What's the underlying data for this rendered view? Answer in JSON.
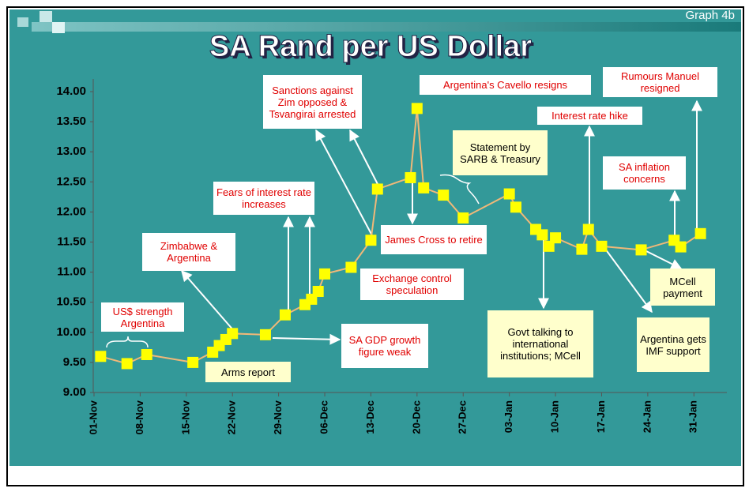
{
  "graph_label": "Graph 4b",
  "chart_data": {
    "type": "line",
    "title": "SA Rand per US Dollar",
    "x": [
      1,
      5,
      8,
      15,
      18,
      19,
      20,
      21,
      26,
      29,
      32,
      33,
      34,
      35,
      39,
      42,
      43,
      48,
      49,
      50,
      53,
      56,
      63,
      64,
      67,
      68,
      69,
      70,
      74,
      75,
      77,
      83,
      88,
      89,
      92
    ],
    "series": [
      {
        "name": "Rand per US Dollar",
        "color": "#f0b878",
        "marker_color": "#ffff00",
        "values": [
          9.6,
          9.48,
          9.63,
          9.5,
          9.67,
          9.78,
          9.88,
          9.98,
          9.96,
          10.29,
          10.46,
          10.55,
          10.68,
          10.97,
          11.08,
          11.53,
          12.38,
          12.57,
          13.72,
          12.4,
          12.28,
          11.9,
          12.3,
          12.08,
          11.71,
          11.62,
          11.43,
          11.57,
          11.38,
          11.71,
          11.43,
          11.37,
          11.53,
          11.42,
          11.64
        ]
      }
    ],
    "xlim": [
      0,
      96
    ],
    "xticks": [
      {
        "value": 0,
        "label": "01-Nov"
      },
      {
        "value": 7,
        "label": "08-Nov"
      },
      {
        "value": 14,
        "label": "15-Nov"
      },
      {
        "value": 21,
        "label": "22-Nov"
      },
      {
        "value": 28,
        "label": "29-Nov"
      },
      {
        "value": 35,
        "label": "06-Dec"
      },
      {
        "value": 42,
        "label": "13-Dec"
      },
      {
        "value": 49,
        "label": "20-Dec"
      },
      {
        "value": 56,
        "label": "27-Dec"
      },
      {
        "value": 63,
        "label": "03-Jan"
      },
      {
        "value": 70,
        "label": "10-Jan"
      },
      {
        "value": 77,
        "label": "17-Jan"
      },
      {
        "value": 84,
        "label": "24-Jan"
      },
      {
        "value": 91,
        "label": "31-Jan"
      }
    ],
    "ylim": [
      9,
      14
    ],
    "yticks": [
      {
        "value": 9,
        "label": "9.00"
      },
      {
        "value": 9.5,
        "label": "9.50"
      },
      {
        "value": 10,
        "label": "10.00"
      },
      {
        "value": 10.5,
        "label": "10.50"
      },
      {
        "value": 11,
        "label": "11.00"
      },
      {
        "value": 11.5,
        "label": "11.50"
      },
      {
        "value": 12,
        "label": "12.00"
      },
      {
        "value": 12.5,
        "label": "12.50"
      },
      {
        "value": 13,
        "label": "13.00"
      },
      {
        "value": 13.5,
        "label": "13.50"
      },
      {
        "value": 14,
        "label": "14.00"
      }
    ],
    "grid": false,
    "annotations": [
      {
        "text": "US$ strength Argentina"
      },
      {
        "text": "Zimbabwe & Argentina"
      },
      {
        "text": "Arms report"
      },
      {
        "text": "Fears of interest rate increases"
      },
      {
        "text": "Sanctions against Zim opposed & Tsvangirai arrested"
      },
      {
        "text": "Exchange control speculation"
      },
      {
        "text": "SA GDP growth figure weak"
      },
      {
        "text": "Argentina's Cavello resigns"
      },
      {
        "text": "James Cross to retire"
      },
      {
        "text": "Statement by SARB & Treasury"
      },
      {
        "text": "Interest rate hike"
      },
      {
        "text": "Rumours Manuel resigned"
      },
      {
        "text": "SA inflation concerns"
      },
      {
        "text": "Govt talking to international institutions; MCell"
      },
      {
        "text": "MCell payment"
      },
      {
        "text": "Argentina gets IMF support"
      }
    ]
  }
}
